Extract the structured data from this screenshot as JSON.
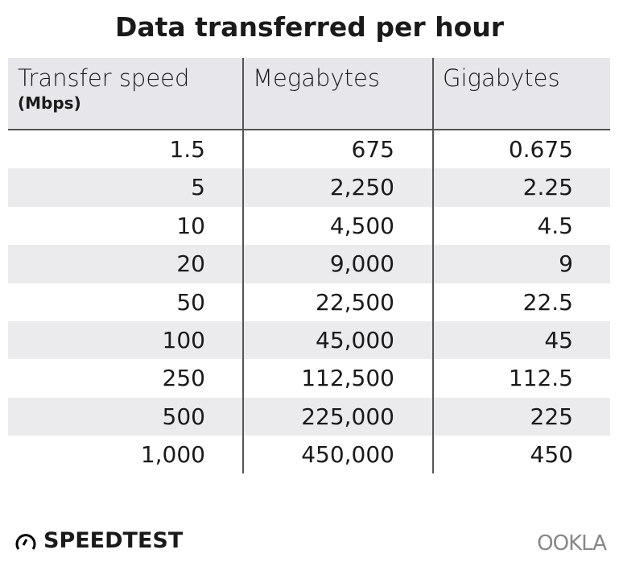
{
  "title": "Data transferred per hour",
  "brand": {
    "left": "SPEEDTEST",
    "right": "OOKLA"
  },
  "chart_data": {
    "type": "table",
    "title": "Data transferred per hour",
    "columns": [
      {
        "label": "Transfer speed",
        "sub": "(Mbps)"
      },
      {
        "label": "Megabytes"
      },
      {
        "label": "Gigabytes"
      }
    ],
    "rows": [
      [
        "1.5",
        "675",
        "0.675"
      ],
      [
        "5",
        "2,250",
        "2.25"
      ],
      [
        "10",
        "4,500",
        "4.5"
      ],
      [
        "20",
        "9,000",
        "9"
      ],
      [
        "50",
        "22,500",
        "22.5"
      ],
      [
        "100",
        "45,000",
        "45"
      ],
      [
        "250",
        "112,500",
        "112.5"
      ],
      [
        "500",
        "225,000",
        "225"
      ],
      [
        "1,000",
        "450,000",
        "450"
      ]
    ]
  }
}
